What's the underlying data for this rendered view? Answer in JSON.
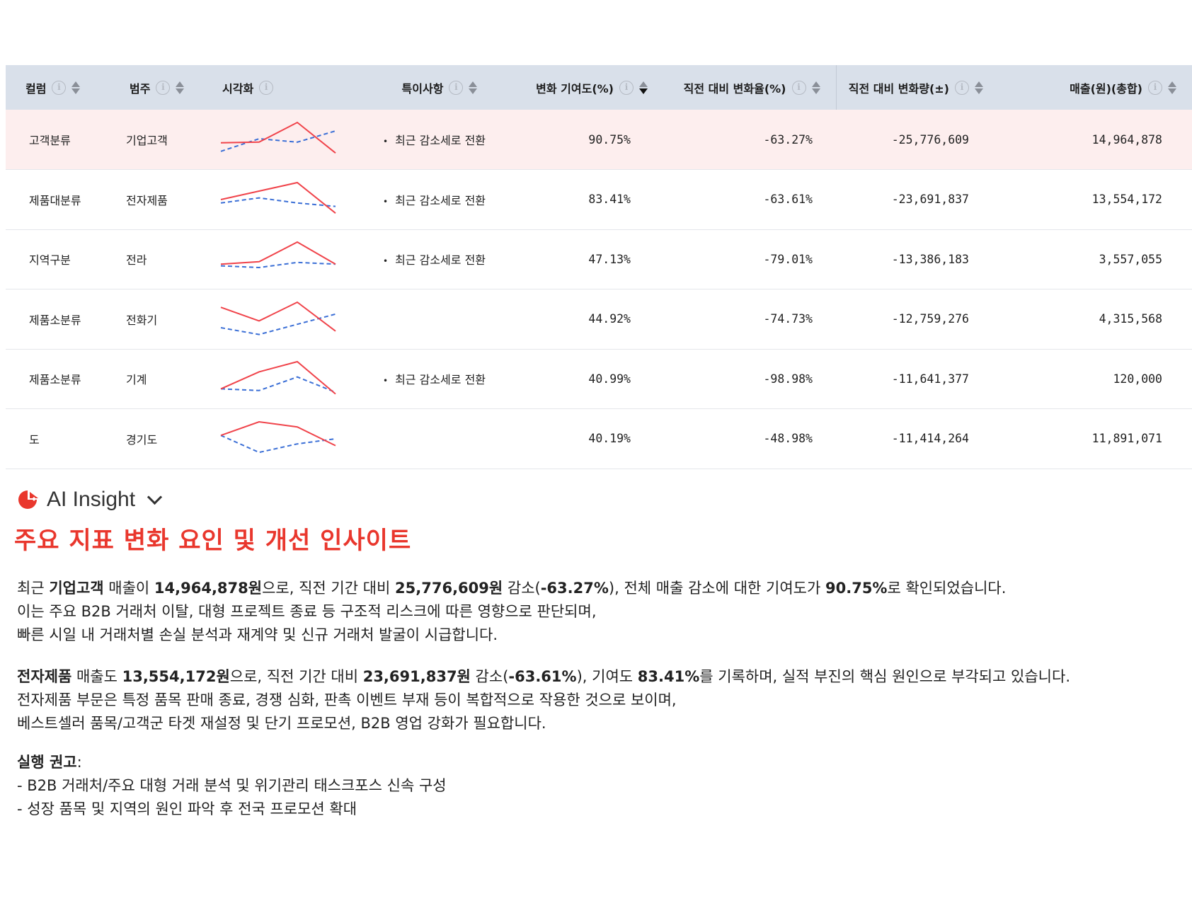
{
  "table": {
    "headers": [
      {
        "label": "컬럼",
        "info": true,
        "sort": "none"
      },
      {
        "label": "범주",
        "info": true,
        "sort": "none"
      },
      {
        "label": "시각화",
        "info": true,
        "sort": null
      },
      {
        "label": "특이사항",
        "info": true,
        "sort": "none"
      },
      {
        "label": "변화 기여도(%)",
        "info": true,
        "sort": "desc"
      },
      {
        "label": "직전 대비 변화율(%)",
        "info": true,
        "sort": "none"
      },
      {
        "label": "직전 대비 변화량(±)",
        "info": true,
        "sort": "none"
      },
      {
        "label": "매출(원)(총합)",
        "info": true,
        "sort": "none"
      }
    ],
    "rows": [
      {
        "column": "고객분류",
        "category": "기업고객",
        "note": "최근 감소세로 전환",
        "contribution": "90.75%",
        "change_rate": "-63.27%",
        "change_amount": "-25,776,609",
        "sales": "14,964,878",
        "spark": {
          "current": [
            0.4,
            0.42,
            1.0,
            0.1
          ],
          "previous": [
            0.15,
            0.52,
            0.42,
            0.75
          ]
        }
      },
      {
        "column": "제품대분류",
        "category": "전자제품",
        "note": "최근 감소세로 전환",
        "contribution": "83.41%",
        "change_rate": "-63.61%",
        "change_amount": "-23,691,837",
        "sales": "13,554,172",
        "spark": {
          "current": [
            0.5,
            0.75,
            1.0,
            0.1
          ],
          "previous": [
            0.4,
            0.55,
            0.4,
            0.3
          ]
        }
      },
      {
        "column": "지역구분",
        "category": "전라",
        "note": "최근 감소세로 전환",
        "contribution": "47.13%",
        "change_rate": "-79.01%",
        "change_amount": "-13,386,183",
        "sales": "3,557,055",
        "spark": {
          "current": [
            0.35,
            0.42,
            1.0,
            0.35
          ],
          "previous": [
            0.3,
            0.25,
            0.4,
            0.35
          ]
        }
      },
      {
        "column": "제품소분류",
        "category": "전화기",
        "note": "",
        "contribution": "44.92%",
        "change_rate": "-74.73%",
        "change_amount": "-12,759,276",
        "sales": "4,315,568",
        "spark": {
          "current": [
            0.85,
            0.45,
            1.0,
            0.15
          ],
          "previous": [
            0.25,
            0.05,
            0.35,
            0.65
          ]
        }
      },
      {
        "column": "제품소분류",
        "category": "기계",
        "note": "최근 감소세로 전환",
        "contribution": "40.99%",
        "change_rate": "-98.98%",
        "change_amount": "-11,641,377",
        "sales": "120,000",
        "spark": {
          "current": [
            0.2,
            0.7,
            1.0,
            0.05
          ],
          "previous": [
            0.2,
            0.15,
            0.55,
            0.1
          ]
        }
      },
      {
        "column": "도",
        "category": "경기도",
        "note": "",
        "contribution": "40.19%",
        "change_rate": "-48.98%",
        "change_amount": "-11,414,264",
        "sales": "11,891,071",
        "spark": {
          "current": [
            0.6,
            1.0,
            0.85,
            0.3
          ],
          "previous": [
            0.6,
            0.1,
            0.35,
            0.5
          ]
        }
      }
    ]
  },
  "colors": {
    "current_line": "#f0434a",
    "previous_line": "#3b6fd6",
    "accent": "#e9372d",
    "highlight_row": "#fdeeee",
    "header_bg": "#d9e0ea"
  },
  "insight": {
    "label": "AI Insight",
    "title": "주요 지표 변화 요인 및 개선 인사이트",
    "p1": [
      {
        "t": "최근 "
      },
      {
        "t": "기업고객",
        "b": true
      },
      {
        "t": " 매출이 "
      },
      {
        "t": "14,964,878원",
        "b": true
      },
      {
        "t": "으로, 직전 기간 대비 "
      },
      {
        "t": "25,776,609원",
        "b": true
      },
      {
        "t": " 감소("
      },
      {
        "t": "-63.27%",
        "b": true
      },
      {
        "t": "), 전체 매출 감소에 대한 기여도가 "
      },
      {
        "t": "90.75%",
        "b": true
      },
      {
        "t": "로 확인되었습니다."
      }
    ],
    "p1_lines": [
      "이는 주요 B2B 거래처 이탈, 대형 프로젝트 종료 등 구조적 리스크에 따른 영향으로 판단되며,",
      "빠른 시일 내 거래처별 손실 분석과 재계약 및 신규 거래처 발굴이 시급합니다."
    ],
    "p2": [
      {
        "t": "전자제품",
        "b": true
      },
      {
        "t": " 매출도 "
      },
      {
        "t": "13,554,172원",
        "b": true
      },
      {
        "t": "으로, 직전 기간 대비 "
      },
      {
        "t": "23,691,837원",
        "b": true
      },
      {
        "t": " 감소("
      },
      {
        "t": "-63.61%",
        "b": true
      },
      {
        "t": "), 기여도 "
      },
      {
        "t": "83.41%",
        "b": true
      },
      {
        "t": "를 기록하며, 실적 부진의 핵심 원인으로 부각되고 있습니다."
      }
    ],
    "p2_lines": [
      "전자제품 부문은 특정 품목 판매 종료, 경쟁 심화, 판촉 이벤트 부재 등이 복합적으로 작용한 것으로 보이며,",
      "베스트셀러 품목/고객군 타겟 재설정 및 단기 프로모션, B2B 영업 강화가 필요합니다."
    ],
    "actions_title": "실행 권고",
    "actions_colon": ":",
    "actions": [
      "- B2B 거래처/주요 대형 거래 분석 및 위기관리 태스크포스 신속 구성",
      "- 성장 품목 및 지역의 원인 파악 후 전국 프로모션 확대"
    ]
  }
}
